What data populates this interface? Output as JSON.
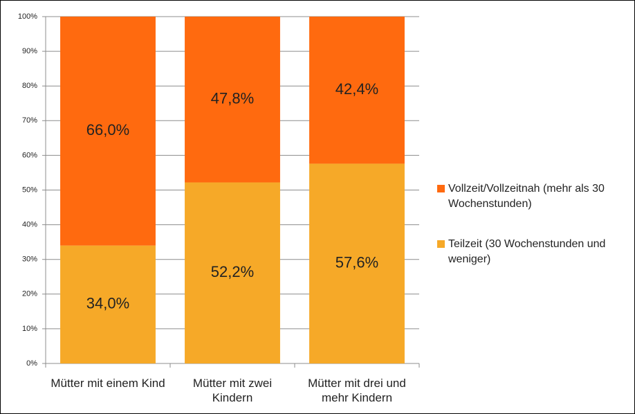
{
  "chart_data": {
    "type": "stacked_bar",
    "categories": [
      "Mütter mit einem Kind",
      "Mütter mit zwei Kindern",
      "Mütter mit drei und mehr Kindern"
    ],
    "series": [
      {
        "name": "Teilzeit (30 Wochenstunden und weniger)",
        "color": "#f6a928",
        "values": [
          34.0,
          52.2,
          57.6
        ],
        "value_labels": [
          "34,0%",
          "52,2%",
          "57,6%"
        ]
      },
      {
        "name": "Vollzeit/Vollzeitnah (mehr als 30 Wochenstunden)",
        "color": "#ff6a0f",
        "values": [
          66.0,
          47.8,
          42.4
        ],
        "value_labels": [
          "66,0%",
          "47,8%",
          "42,4%"
        ]
      }
    ],
    "ylim": [
      0,
      100
    ],
    "yticks": [
      {
        "value": 0,
        "label": "0%"
      },
      {
        "value": 10,
        "label": "10%"
      },
      {
        "value": 20,
        "label": "20%"
      },
      {
        "value": 30,
        "label": "30%"
      },
      {
        "value": 40,
        "label": "40%"
      },
      {
        "value": 50,
        "label": "50%"
      },
      {
        "value": 60,
        "label": "60%"
      },
      {
        "value": 70,
        "label": "70%"
      },
      {
        "value": 80,
        "label": "80%"
      },
      {
        "value": 90,
        "label": "90%"
      },
      {
        "value": 100,
        "label": "100%"
      }
    ],
    "grid": true,
    "legend": "right"
  }
}
